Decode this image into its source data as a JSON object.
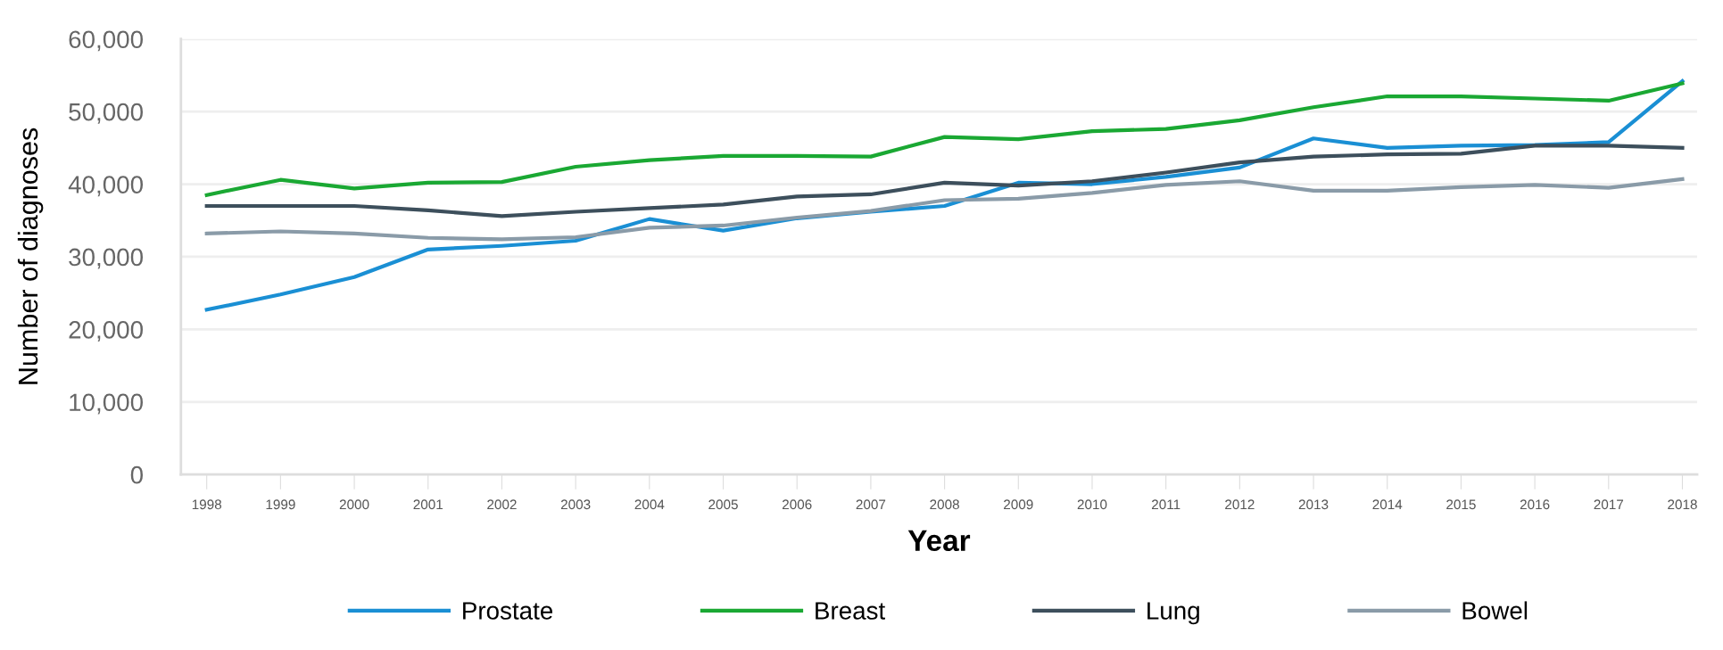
{
  "chart_data": {
    "type": "line",
    "xlabel": "Year",
    "ylabel": "Number of diagnoses",
    "categories": [
      "1998",
      "1999",
      "2000",
      "2001",
      "2002",
      "2003",
      "2004",
      "2005",
      "2006",
      "2007",
      "2008",
      "2009",
      "2010",
      "2011",
      "2012",
      "2013",
      "2014",
      "2015",
      "2016",
      "2017",
      "2018"
    ],
    "series": [
      {
        "name": "Prostate",
        "color": "#1a8fd4",
        "values": [
          22700,
          24800,
          27200,
          31000,
          31500,
          32200,
          35200,
          33600,
          35300,
          36200,
          37000,
          40200,
          40000,
          41000,
          42300,
          46300,
          45000,
          45300,
          45400,
          45800,
          54200
        ]
      },
      {
        "name": "Breast",
        "color": "#1aa833",
        "values": [
          38500,
          40600,
          39400,
          40200,
          40300,
          42400,
          43300,
          43900,
          43900,
          43800,
          46500,
          46200,
          47300,
          47600,
          48800,
          50600,
          52100,
          52100,
          51800,
          51500,
          53900
        ]
      },
      {
        "name": "Lung",
        "color": "#3d4f5c",
        "values": [
          37000,
          37000,
          37000,
          36400,
          35600,
          36200,
          36700,
          37200,
          38300,
          38600,
          40200,
          39800,
          40400,
          41600,
          43000,
          43800,
          44100,
          44200,
          45300,
          45300,
          45000
        ]
      },
      {
        "name": "Bowel",
        "color": "#8a9ba8",
        "values": [
          33200,
          33500,
          33200,
          32600,
          32400,
          32700,
          34000,
          34300,
          35400,
          36300,
          37800,
          38000,
          38800,
          39900,
          40400,
          39100,
          39100,
          39600,
          39900,
          39500,
          40700
        ]
      }
    ],
    "ylim": [
      0,
      60000
    ],
    "yticks": [
      {
        "value": 0,
        "label": "0"
      },
      {
        "value": 10000,
        "label": "10,000"
      },
      {
        "value": 20000,
        "label": "20,000"
      },
      {
        "value": 30000,
        "label": "30,000"
      },
      {
        "value": 40000,
        "label": "40,000"
      },
      {
        "value": 50000,
        "label": "50,000"
      },
      {
        "value": 60000,
        "label": "60,000"
      }
    ],
    "grid": "y",
    "legend": "bottom",
    "marker": "none",
    "line_style": "solid"
  }
}
